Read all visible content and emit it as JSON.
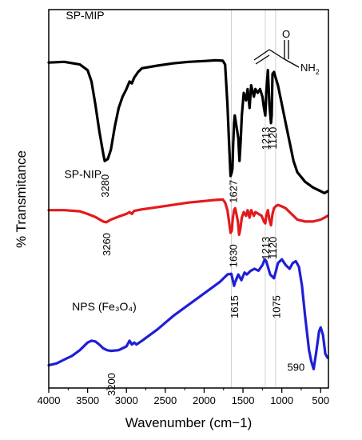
{
  "chart_data": {
    "type": "line",
    "xlabel": "Wavenumber (cm−1)",
    "ylabel": "% Transmitance",
    "xlim": [
      4000,
      400
    ],
    "x_reversed": true,
    "x_ticks": [
      4000,
      3500,
      3000,
      2500,
      2000,
      1500,
      1000,
      500
    ],
    "y_ticks_shown": false,
    "series": [
      {
        "name": "SP-MIP",
        "color": "#000000",
        "points": [
          [
            4000,
            0.86
          ],
          [
            3800,
            0.862
          ],
          [
            3600,
            0.855
          ],
          [
            3500,
            0.84
          ],
          [
            3450,
            0.81
          ],
          [
            3400,
            0.75
          ],
          [
            3350,
            0.68
          ],
          [
            3300,
            0.62
          ],
          [
            3280,
            0.6
          ],
          [
            3240,
            0.605
          ],
          [
            3200,
            0.63
          ],
          [
            3150,
            0.69
          ],
          [
            3100,
            0.74
          ],
          [
            3050,
            0.77
          ],
          [
            3000,
            0.79
          ],
          [
            2960,
            0.81
          ],
          [
            2930,
            0.805
          ],
          [
            2900,
            0.82
          ],
          [
            2850,
            0.835
          ],
          [
            2800,
            0.845
          ],
          [
            2600,
            0.852
          ],
          [
            2400,
            0.858
          ],
          [
            2200,
            0.862
          ],
          [
            2000,
            0.864
          ],
          [
            1850,
            0.866
          ],
          [
            1760,
            0.865
          ],
          [
            1730,
            0.855
          ],
          [
            1700,
            0.75
          ],
          [
            1680,
            0.65
          ],
          [
            1660,
            0.56
          ],
          [
            1645,
            0.57
          ],
          [
            1635,
            0.58
          ],
          [
            1627,
            0.64
          ],
          [
            1615,
            0.7
          ],
          [
            1605,
            0.72
          ],
          [
            1590,
            0.7
          ],
          [
            1560,
            0.66
          ],
          [
            1545,
            0.6
          ],
          [
            1530,
            0.65
          ],
          [
            1515,
            0.72
          ],
          [
            1490,
            0.78
          ],
          [
            1460,
            0.76
          ],
          [
            1440,
            0.79
          ],
          [
            1415,
            0.74
          ],
          [
            1395,
            0.8
          ],
          [
            1360,
            0.77
          ],
          [
            1340,
            0.79
          ],
          [
            1310,
            0.78
          ],
          [
            1280,
            0.79
          ],
          [
            1250,
            0.77
          ],
          [
            1230,
            0.74
          ],
          [
            1213,
            0.72
          ],
          [
            1200,
            0.78
          ],
          [
            1180,
            0.84
          ],
          [
            1160,
            0.75
          ],
          [
            1140,
            0.7
          ],
          [
            1130,
            0.72
          ],
          [
            1120,
            0.83
          ],
          [
            1100,
            0.835
          ],
          [
            1080,
            0.82
          ],
          [
            1050,
            0.8
          ],
          [
            1000,
            0.75
          ],
          [
            950,
            0.7
          ],
          [
            900,
            0.65
          ],
          [
            850,
            0.6
          ],
          [
            800,
            0.57
          ],
          [
            700,
            0.545
          ],
          [
            600,
            0.53
          ],
          [
            500,
            0.52
          ],
          [
            450,
            0.515
          ],
          [
            410,
            0.52
          ]
        ]
      },
      {
        "name": "SP-NIP",
        "color": "#e31a1c",
        "points": [
          [
            4000,
            0.47
          ],
          [
            3800,
            0.47
          ],
          [
            3600,
            0.467
          ],
          [
            3500,
            0.46
          ],
          [
            3400,
            0.452
          ],
          [
            3300,
            0.44
          ],
          [
            3260,
            0.438
          ],
          [
            3200,
            0.445
          ],
          [
            3100,
            0.453
          ],
          [
            3000,
            0.46
          ],
          [
            2960,
            0.465
          ],
          [
            2930,
            0.46
          ],
          [
            2900,
            0.468
          ],
          [
            2800,
            0.472
          ],
          [
            2600,
            0.478
          ],
          [
            2400,
            0.484
          ],
          [
            2200,
            0.49
          ],
          [
            2000,
            0.494
          ],
          [
            1850,
            0.497
          ],
          [
            1760,
            0.498
          ],
          [
            1730,
            0.49
          ],
          [
            1700,
            0.47
          ],
          [
            1680,
            0.44
          ],
          [
            1660,
            0.41
          ],
          [
            1645,
            0.415
          ],
          [
            1630,
            0.45
          ],
          [
            1615,
            0.47
          ],
          [
            1600,
            0.475
          ],
          [
            1585,
            0.46
          ],
          [
            1565,
            0.44
          ],
          [
            1550,
            0.405
          ],
          [
            1535,
            0.42
          ],
          [
            1515,
            0.45
          ],
          [
            1490,
            0.465
          ],
          [
            1460,
            0.455
          ],
          [
            1440,
            0.47
          ],
          [
            1415,
            0.45
          ],
          [
            1395,
            0.47
          ],
          [
            1360,
            0.455
          ],
          [
            1340,
            0.465
          ],
          [
            1300,
            0.46
          ],
          [
            1260,
            0.455
          ],
          [
            1230,
            0.44
          ],
          [
            1213,
            0.435
          ],
          [
            1200,
            0.455
          ],
          [
            1180,
            0.47
          ],
          [
            1160,
            0.445
          ],
          [
            1140,
            0.43
          ],
          [
            1120,
            0.46
          ],
          [
            1100,
            0.475
          ],
          [
            1080,
            0.48
          ],
          [
            1050,
            0.484
          ],
          [
            1000,
            0.48
          ],
          [
            950,
            0.475
          ],
          [
            900,
            0.465
          ],
          [
            850,
            0.455
          ],
          [
            800,
            0.445
          ],
          [
            700,
            0.44
          ],
          [
            600,
            0.44
          ],
          [
            500,
            0.445
          ],
          [
            450,
            0.45
          ],
          [
            410,
            0.455
          ]
        ]
      },
      {
        "name": "NPS (Fe₃O₄)",
        "color": "#1f1fd6",
        "points": [
          [
            4000,
            0.06
          ],
          [
            3900,
            0.065
          ],
          [
            3800,
            0.075
          ],
          [
            3700,
            0.085
          ],
          [
            3600,
            0.1
          ],
          [
            3500,
            0.12
          ],
          [
            3450,
            0.125
          ],
          [
            3400,
            0.123
          ],
          [
            3350,
            0.115
          ],
          [
            3300,
            0.105
          ],
          [
            3250,
            0.1
          ],
          [
            3200,
            0.098
          ],
          [
            3100,
            0.1
          ],
          [
            3000,
            0.11
          ],
          [
            2960,
            0.125
          ],
          [
            2930,
            0.115
          ],
          [
            2900,
            0.12
          ],
          [
            2870,
            0.115
          ],
          [
            2800,
            0.125
          ],
          [
            2600,
            0.155
          ],
          [
            2400,
            0.19
          ],
          [
            2200,
            0.22
          ],
          [
            2000,
            0.25
          ],
          [
            1800,
            0.28
          ],
          [
            1700,
            0.3
          ],
          [
            1650,
            0.302
          ],
          [
            1615,
            0.27
          ],
          [
            1600,
            0.28
          ],
          [
            1560,
            0.3
          ],
          [
            1520,
            0.285
          ],
          [
            1480,
            0.305
          ],
          [
            1450,
            0.3
          ],
          [
            1400,
            0.31
          ],
          [
            1350,
            0.315
          ],
          [
            1300,
            0.31
          ],
          [
            1250,
            0.325
          ],
          [
            1220,
            0.34
          ],
          [
            1200,
            0.335
          ],
          [
            1150,
            0.3
          ],
          [
            1100,
            0.29
          ],
          [
            1075,
            0.31
          ],
          [
            1050,
            0.33
          ],
          [
            1000,
            0.34
          ],
          [
            950,
            0.325
          ],
          [
            900,
            0.315
          ],
          [
            860,
            0.33
          ],
          [
            820,
            0.335
          ],
          [
            780,
            0.32
          ],
          [
            740,
            0.27
          ],
          [
            700,
            0.19
          ],
          [
            650,
            0.1
          ],
          [
            620,
            0.07
          ],
          [
            590,
            0.05
          ],
          [
            560,
            0.09
          ],
          [
            520,
            0.15
          ],
          [
            500,
            0.16
          ],
          [
            470,
            0.14
          ],
          [
            440,
            0.09
          ],
          [
            410,
            0.08
          ]
        ]
      }
    ],
    "series_labels": [
      {
        "text": "SP-MIP",
        "x": 3780,
        "y": 0.975
      },
      {
        "text": "SP-NIP",
        "x": 3800,
        "y": 0.555
      },
      {
        "text": "NPS (Fe₃O₄)",
        "x": 3700,
        "y": 0.205
      }
    ],
    "annotations": [
      {
        "text": "3280",
        "x": 3280,
        "y": 0.565,
        "rotate": true
      },
      {
        "text": "1627",
        "x": 1627,
        "y": 0.55,
        "rotate": true
      },
      {
        "text": "1213",
        "x": 1213,
        "y": 0.69,
        "rotate": true
      },
      {
        "text": "1120",
        "x": 1120,
        "y": 0.69,
        "rotate": true
      },
      {
        "text": "3260",
        "x": 3260,
        "y": 0.41,
        "rotate": true
      },
      {
        "text": "1630",
        "x": 1630,
        "y": 0.38,
        "rotate": true
      },
      {
        "text": "1213",
        "x": 1213,
        "y": 0.4,
        "rotate": true
      },
      {
        "text": "1120",
        "x": 1120,
        "y": 0.4,
        "rotate": true
      },
      {
        "text": "1615",
        "x": 1615,
        "y": 0.245,
        "rotate": true
      },
      {
        "text": "1075",
        "x": 1075,
        "y": 0.245,
        "rotate": true
      },
      {
        "text": "3200",
        "x": 3200,
        "y": 0.04,
        "rotate": true
      },
      {
        "text": "590",
        "x": 590,
        "y": 0.045,
        "rotate": false
      }
    ],
    "reference_lines": [
      1650,
      1213,
      1080
    ],
    "molecule": {
      "name": "acrylamide",
      "atom_labels": {
        "oxygen": "O",
        "amine": "NH",
        "amine_subscript": "2"
      }
    }
  }
}
